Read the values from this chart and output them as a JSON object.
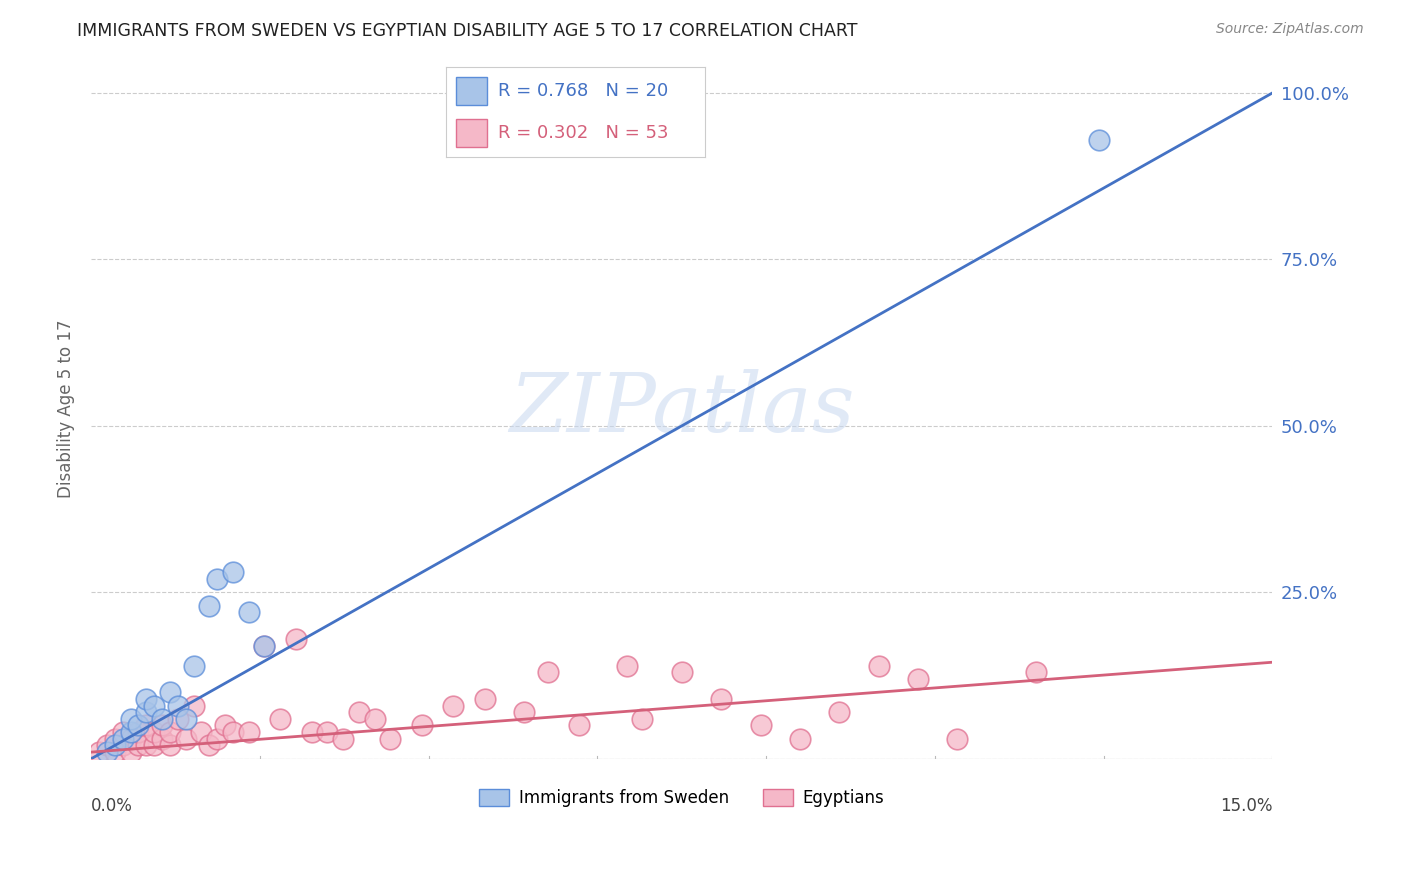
{
  "title": "IMMIGRANTS FROM SWEDEN VS EGYPTIAN DISABILITY AGE 5 TO 17 CORRELATION CHART",
  "source": "Source: ZipAtlas.com",
  "ylabel": "Disability Age 5 to 17",
  "ytick_values": [
    0.0,
    0.25,
    0.5,
    0.75,
    1.0
  ],
  "ytick_labels": [
    "",
    "25.0%",
    "50.0%",
    "75.0%",
    "100.0%"
  ],
  "xlim": [
    0.0,
    0.15
  ],
  "ylim": [
    0.0,
    1.05
  ],
  "legend_sweden_r": "R = 0.768",
  "legend_sweden_n": "N = 20",
  "legend_egypt_r": "R = 0.302",
  "legend_egypt_n": "N = 53",
  "color_sweden_fill": "#A8C4E8",
  "color_sweden_edge": "#5B8DD9",
  "color_egypt_fill": "#F5B8C8",
  "color_egypt_edge": "#E07090",
  "color_line_sweden": "#4472C4",
  "color_line_egypt": "#D4607A",
  "watermark_color": "#C8D8F0",
  "sweden_line_x0": 0.0,
  "sweden_line_y0": 0.0,
  "sweden_line_x1": 0.15,
  "sweden_line_y1": 1.0,
  "egypt_line_x0": 0.0,
  "egypt_line_y0": 0.01,
  "egypt_line_x1": 0.15,
  "egypt_line_y1": 0.145,
  "sweden_x": [
    0.002,
    0.003,
    0.004,
    0.005,
    0.005,
    0.006,
    0.007,
    0.007,
    0.008,
    0.009,
    0.01,
    0.011,
    0.012,
    0.013,
    0.015,
    0.016,
    0.018,
    0.02,
    0.022,
    0.128
  ],
  "sweden_y": [
    0.01,
    0.02,
    0.03,
    0.04,
    0.06,
    0.05,
    0.07,
    0.09,
    0.08,
    0.06,
    0.1,
    0.08,
    0.06,
    0.14,
    0.23,
    0.27,
    0.28,
    0.22,
    0.17,
    0.93
  ],
  "egypt_x": [
    0.001,
    0.002,
    0.003,
    0.003,
    0.004,
    0.004,
    0.005,
    0.005,
    0.006,
    0.006,
    0.007,
    0.007,
    0.008,
    0.008,
    0.009,
    0.009,
    0.01,
    0.01,
    0.011,
    0.012,
    0.013,
    0.014,
    0.015,
    0.016,
    0.017,
    0.018,
    0.02,
    0.022,
    0.024,
    0.026,
    0.028,
    0.03,
    0.032,
    0.034,
    0.036,
    0.038,
    0.042,
    0.046,
    0.05,
    0.055,
    0.058,
    0.062,
    0.068,
    0.07,
    0.075,
    0.08,
    0.085,
    0.09,
    0.095,
    0.1,
    0.105,
    0.11,
    0.12
  ],
  "egypt_y": [
    0.01,
    0.02,
    0.01,
    0.03,
    0.02,
    0.04,
    0.01,
    0.03,
    0.02,
    0.04,
    0.02,
    0.05,
    0.02,
    0.04,
    0.03,
    0.05,
    0.02,
    0.04,
    0.06,
    0.03,
    0.08,
    0.04,
    0.02,
    0.03,
    0.05,
    0.04,
    0.04,
    0.17,
    0.06,
    0.18,
    0.04,
    0.04,
    0.03,
    0.07,
    0.06,
    0.03,
    0.05,
    0.08,
    0.09,
    0.07,
    0.13,
    0.05,
    0.14,
    0.06,
    0.13,
    0.09,
    0.05,
    0.03,
    0.07,
    0.14,
    0.12,
    0.03,
    0.13
  ],
  "background_color": "#FFFFFF",
  "grid_color": "#CCCCCC",
  "legend_label_sweden": "Immigrants from Sweden",
  "legend_label_egypt": "Egyptians"
}
